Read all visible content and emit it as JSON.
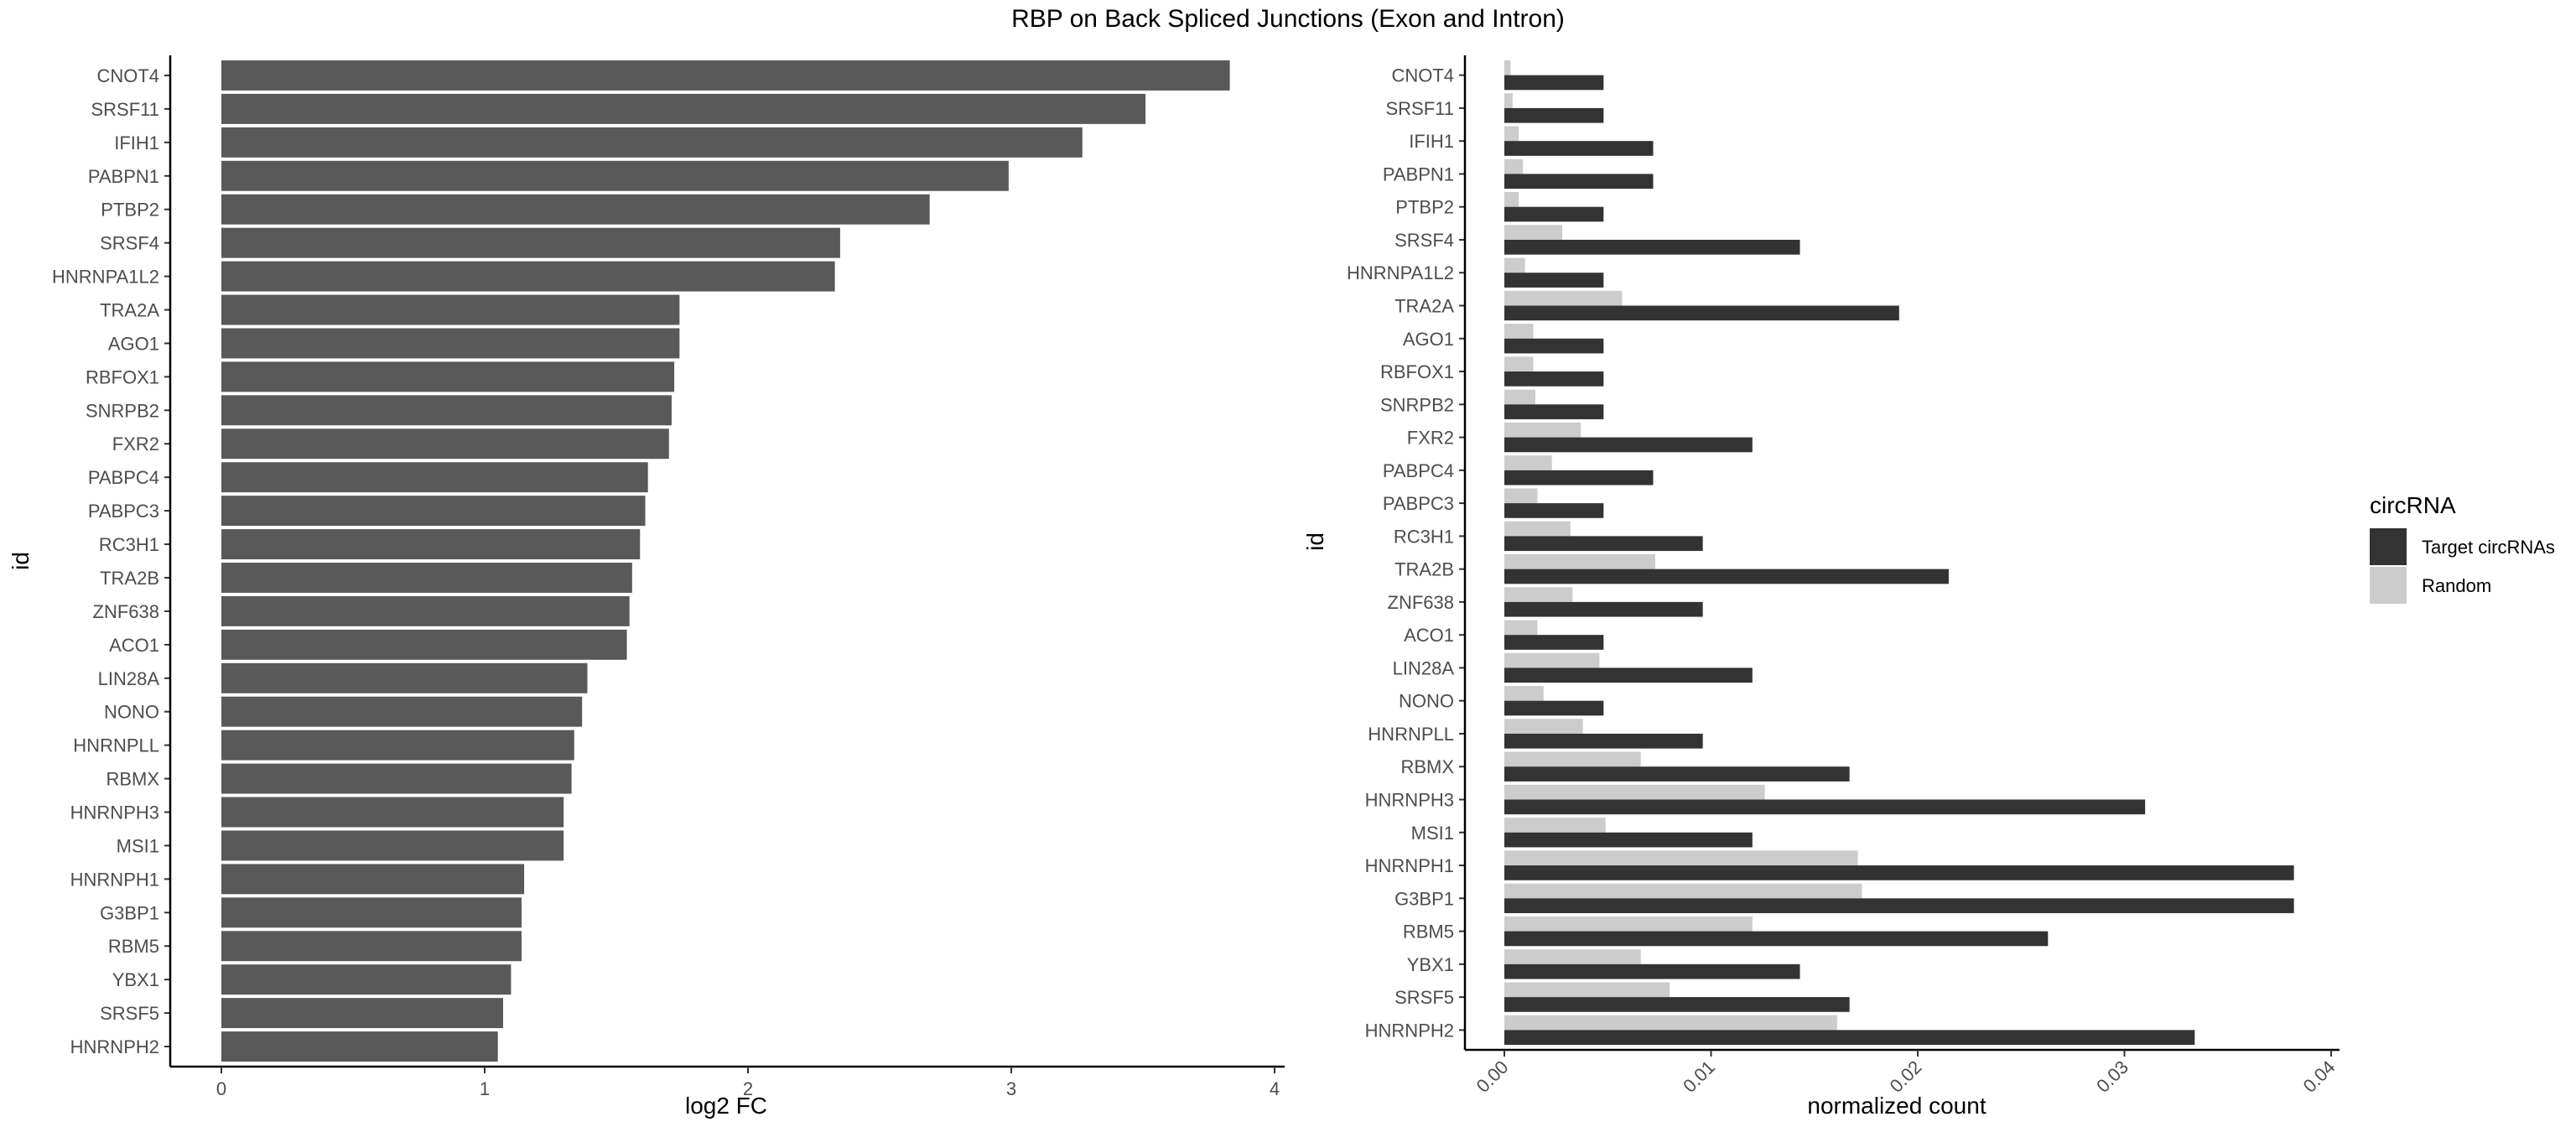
{
  "title": "RBP on Back Spliced Junctions (Exon and Intron)",
  "chart_data": [
    {
      "type": "bar",
      "orientation": "horizontal",
      "title": "",
      "xlabel": "log2 FC",
      "ylabel": "id",
      "xlim": [
        0,
        4
      ],
      "xticks": [
        "0",
        "1",
        "2",
        "3",
        "4"
      ],
      "grid": false,
      "color": "#595959",
      "categories": [
        "CNOT4",
        "SRSF11",
        "IFIH1",
        "PABPN1",
        "PTBP2",
        "SRSF4",
        "HNRNPA1L2",
        "TRA2A",
        "AGO1",
        "RBFOX1",
        "SNRPB2",
        "FXR2",
        "PABPC4",
        "PABPC3",
        "RC3H1",
        "TRA2B",
        "ZNF638",
        "ACO1",
        "LIN28A",
        "NONO",
        "HNRNPLL",
        "RBMX",
        "HNRNPH3",
        "MSI1",
        "HNRNPH1",
        "G3BP1",
        "RBM5",
        "YBX1",
        "SRSF5",
        "HNRNPH2"
      ],
      "values": [
        3.83,
        3.51,
        3.27,
        2.99,
        2.69,
        2.35,
        2.33,
        1.74,
        1.74,
        1.72,
        1.71,
        1.7,
        1.62,
        1.61,
        1.59,
        1.56,
        1.55,
        1.54,
        1.39,
        1.37,
        1.34,
        1.33,
        1.3,
        1.3,
        1.15,
        1.14,
        1.14,
        1.1,
        1.07,
        1.05
      ]
    },
    {
      "type": "bar",
      "orientation": "horizontal",
      "title": "",
      "xlabel": "normalized count",
      "ylabel": "id",
      "xlim": [
        0,
        0.04
      ],
      "xticks": [
        "0.00",
        "0.01",
        "0.02",
        "0.03",
        "0.04"
      ],
      "grid": false,
      "legend": {
        "title": "circRNA",
        "placement": "right"
      },
      "categories": [
        "CNOT4",
        "SRSF11",
        "IFIH1",
        "PABPN1",
        "PTBP2",
        "SRSF4",
        "HNRNPA1L2",
        "TRA2A",
        "AGO1",
        "RBFOX1",
        "SNRPB2",
        "FXR2",
        "PABPC4",
        "PABPC3",
        "RC3H1",
        "TRA2B",
        "ZNF638",
        "ACO1",
        "LIN28A",
        "NONO",
        "HNRNPLL",
        "RBMX",
        "HNRNPH3",
        "MSI1",
        "HNRNPH1",
        "G3BP1",
        "RBM5",
        "YBX1",
        "SRSF5",
        "HNRNPH2"
      ],
      "series": [
        {
          "name": "Target circRNAs",
          "color": "#333333",
          "values": [
            0.0048,
            0.0048,
            0.0072,
            0.0072,
            0.0048,
            0.0143,
            0.0048,
            0.0191,
            0.0048,
            0.0048,
            0.0048,
            0.012,
            0.0072,
            0.0048,
            0.0096,
            0.0215,
            0.0096,
            0.0048,
            0.012,
            0.0048,
            0.0096,
            0.0167,
            0.031,
            0.012,
            0.0382,
            0.0382,
            0.0263,
            0.0143,
            0.0167,
            0.0334
          ]
        },
        {
          "name": "Random",
          "color": "#cccccc",
          "values": [
            0.0003,
            0.0004,
            0.0007,
            0.0009,
            0.0007,
            0.0028,
            0.001,
            0.0057,
            0.0014,
            0.0014,
            0.0015,
            0.0037,
            0.0023,
            0.0016,
            0.0032,
            0.0073,
            0.0033,
            0.0016,
            0.0046,
            0.0019,
            0.0038,
            0.0066,
            0.0126,
            0.0049,
            0.0171,
            0.0173,
            0.012,
            0.0066,
            0.008,
            0.0161
          ]
        }
      ]
    }
  ]
}
